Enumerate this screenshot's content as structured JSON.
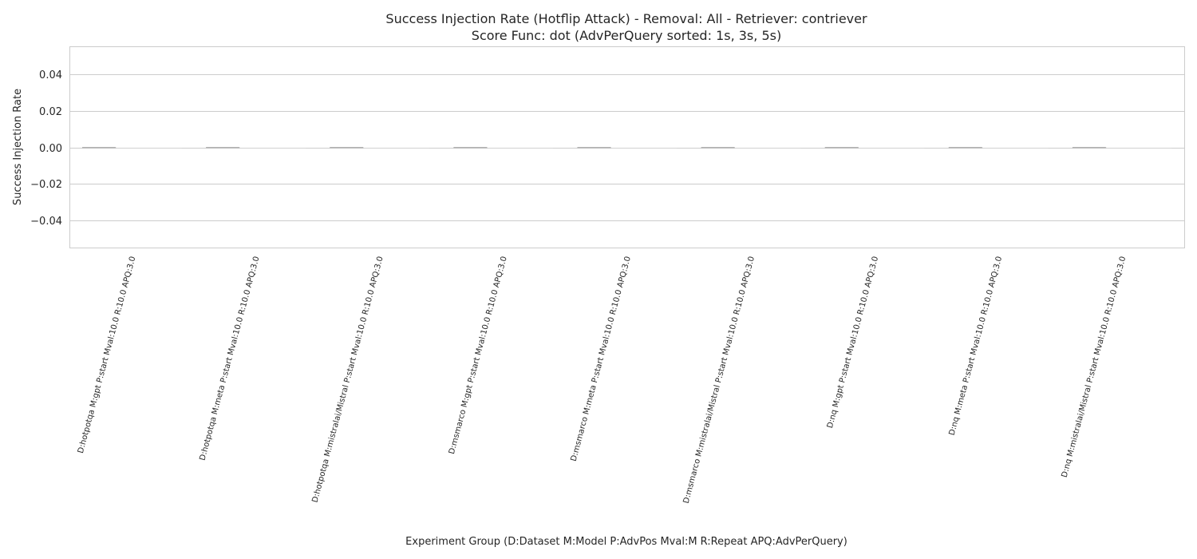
{
  "chart_data": {
    "type": "bar",
    "title": "Success Injection Rate (Hotflip Attack) - Removal: All - Retriever: contriever",
    "subtitle": "Score Func: dot (AdvPerQuery sorted: 1s, 3s, 5s)",
    "xlabel": "Experiment Group (D:Dataset M:Model P:AdvPos Mval:M R:Repeat APQ:AdvPerQuery)",
    "ylabel": "Success Injection Rate",
    "ylim": [
      -0.055,
      0.055
    ],
    "yticks": [
      0.04,
      0.02,
      0.0,
      -0.02,
      -0.04
    ],
    "ytick_labels": [
      "0.04",
      "0.02",
      "0.00",
      "−0.02",
      "−0.04"
    ],
    "grid": true,
    "categories": [
      "D:hotpotqa M:gpt P:start Mval:10.0 R:10.0 APQ:3.0",
      "D:hotpotqa M:meta P:start Mval:10.0 R:10.0 APQ:3.0",
      "D:hotpotqa M:mistralai/Mistral P:start Mval:10.0 R:10.0 APQ:3.0",
      "D:msmarco M:gpt P:start Mval:10.0 R:10.0 APQ:3.0",
      "D:msmarco M:meta P:start Mval:10.0 R:10.0 APQ:3.0",
      "D:msmarco M:mistralai/Mistral P:start Mval:10.0 R:10.0 APQ:3.0",
      "D:nq M:gpt P:start Mval:10.0 R:10.0 APQ:3.0",
      "D:nq M:meta P:start Mval:10.0 R:10.0 APQ:3.0",
      "D:nq M:mistralai/Mistral P:start Mval:10.0 R:10.0 APQ:3.0"
    ],
    "series": [
      {
        "values": [
          0,
          0,
          0,
          0,
          0,
          0,
          0,
          0,
          0
        ]
      },
      {
        "values": [
          0,
          0,
          0,
          0,
          0,
          0,
          0,
          0,
          0
        ]
      },
      {
        "values": [
          0,
          0,
          0,
          0,
          0,
          0,
          0,
          0,
          0
        ]
      }
    ]
  }
}
